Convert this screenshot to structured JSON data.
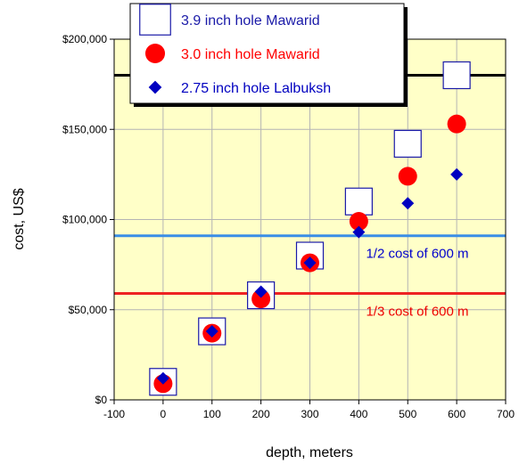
{
  "chart_data": {
    "type": "scatter",
    "xlabel": "depth, meters",
    "ylabel": "cost, US$",
    "xlim": [
      -100,
      700
    ],
    "ylim": [
      0,
      200000
    ],
    "x_ticks": [
      -100,
      0,
      100,
      200,
      300,
      400,
      500,
      600,
      700
    ],
    "x_tick_labels": [
      "-100",
      "0",
      "100",
      "200",
      "300",
      "400",
      "500",
      "600",
      "700"
    ],
    "y_ticks": [
      0,
      50000,
      100000,
      150000,
      200000
    ],
    "y_tick_labels": [
      "$0",
      "$50,000",
      "$100,000",
      "$150,000",
      "$200,000"
    ],
    "grid": true,
    "plot_background": "#ffffc8",
    "legend_position": "top-left",
    "series": [
      {
        "name": "3.9 inch hole Mawarid",
        "marker": "open-square",
        "color": "#1a1aa8",
        "x": [
          0,
          100,
          200,
          300,
          400,
          500,
          600
        ],
        "y": [
          10000,
          38000,
          58000,
          80000,
          110000,
          142000,
          180000
        ]
      },
      {
        "name": "3.0 inch hole Mawarid",
        "marker": "filled-circle",
        "color": "#ff0000",
        "x": [
          0,
          100,
          200,
          300,
          400,
          500,
          600
        ],
        "y": [
          9000,
          37000,
          56000,
          76000,
          99000,
          124000,
          153000
        ]
      },
      {
        "name": "2.75 inch hole Lalbuksh",
        "marker": "filled-diamond",
        "color": "#0000c0",
        "x": [
          0,
          100,
          200,
          300,
          400,
          500,
          600
        ],
        "y": [
          12000,
          38000,
          60000,
          76000,
          93000,
          109000,
          125000
        ]
      }
    ],
    "reference_lines": [
      {
        "y": 180000,
        "color": "#000000",
        "label": ""
      },
      {
        "y": 91000,
        "color": "#3a8ee6",
        "label": "1/2 cost of 600 m",
        "label_color": "#0000cc"
      },
      {
        "y": 59000,
        "color": "#ee2222",
        "label": "1/3 cost of 600 m",
        "label_color": "#ee0000"
      }
    ]
  }
}
